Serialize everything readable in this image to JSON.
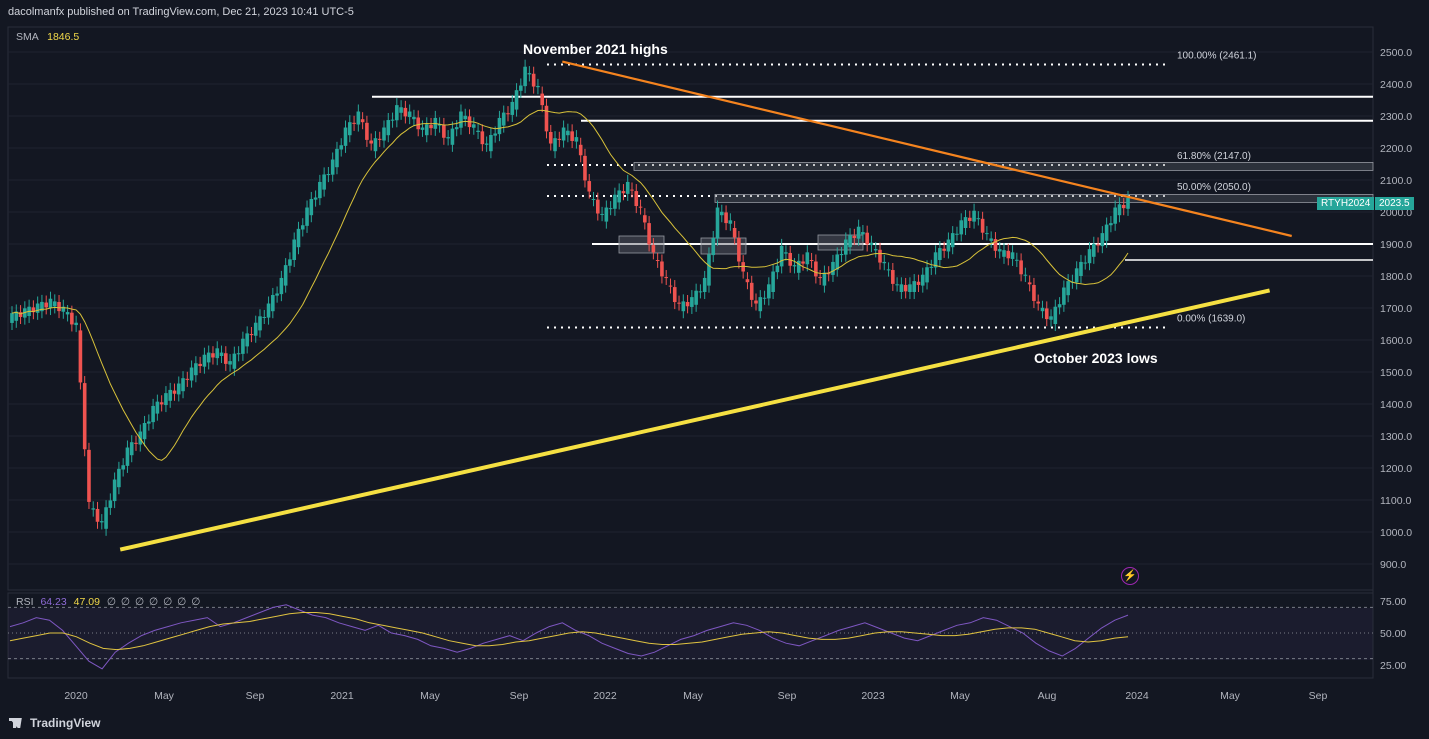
{
  "header": {
    "publisher_line": "dacolmanfx published on TradingView.com, Dec 21, 2023 10:41 UTC-5"
  },
  "legend": {
    "sma_label": "SMA",
    "sma_value": "1846.5",
    "rsi_label": "RSI",
    "rsi_value": "64.23",
    "rsi_ma_value": "47.09",
    "rsi_placeholders": "∅ ∅ ∅ ∅ ∅ ∅ ∅"
  },
  "annotations": {
    "top": "November 2021 highs",
    "bottom": "October 2023 lows"
  },
  "symbol_tag": {
    "symbol": "RTYH2024",
    "price": "2023.5"
  },
  "footer": {
    "brand": "TradingView"
  },
  "chart_data": [
    {
      "type": "candlestick",
      "title": "",
      "y_axis_ticks": [
        "2500.0",
        "2400.0",
        "2300.0",
        "2200.0",
        "2100.0",
        "2000.0",
        "1900.0",
        "1800.0",
        "1700.0",
        "1600.0",
        "1500.0",
        "1400.0",
        "1300.0",
        "1200.0",
        "1100.0",
        "1000.0",
        "900.0"
      ],
      "ylim": [
        880,
        2530
      ],
      "x_axis_ticks": [
        "2020",
        "May",
        "Sep",
        "2021",
        "May",
        "Sep",
        "2022",
        "May",
        "Sep",
        "2023",
        "May",
        "Aug",
        "2024",
        "May",
        "Sep"
      ],
      "fib_levels": [
        {
          "label": "100.00% (2461.1)",
          "value": 2461.1
        },
        {
          "label": "61.80% (2147.0)",
          "value": 2147.0
        },
        {
          "label": "50.00% (2050.0)",
          "value": 2050.0
        },
        {
          "label": "0.00% (1639.0)",
          "value": 1639.0
        }
      ],
      "horizontal_levels": [
        2360,
        2285,
        1900,
        1850
      ],
      "zones": [
        {
          "from": 2130,
          "to": 2155
        },
        {
          "from": 2030,
          "to": 2055
        }
      ],
      "trendlines": [
        {
          "name": "descending",
          "color": "#f5841f",
          "from": [
            "Nov 2021",
            2470
          ],
          "to": [
            "Aug 2024",
            1925
          ]
        },
        {
          "name": "ascending",
          "color": "#f5e042",
          "from": [
            "Mar 2020",
            945
          ],
          "to": [
            "Jul 2024",
            1755
          ]
        }
      ],
      "sma_period_value": 1846.5,
      "series": [
        {
          "name": "RTYH2024",
          "values": [
            1670,
            1685,
            1700,
            1715,
            1690,
            1640,
            1080,
            1020,
            1150,
            1250,
            1300,
            1380,
            1420,
            1450,
            1500,
            1540,
            1560,
            1520,
            1590,
            1640,
            1700,
            1780,
            1900,
            2000,
            2080,
            2150,
            2250,
            2300,
            2200,
            2250,
            2320,
            2300,
            2250,
            2280,
            2220,
            2300,
            2260,
            2200,
            2280,
            2330,
            2440,
            2380,
            2200,
            2250,
            2220,
            2050,
            1980,
            2040,
            2080,
            2000,
            1860,
            1780,
            1700,
            1720,
            1780,
            2000,
            1960,
            1800,
            1700,
            1760,
            1880,
            1820,
            1860,
            1780,
            1830,
            1900,
            1940,
            1890,
            1830,
            1760,
            1760,
            1790,
            1860,
            1900,
            1960,
            1990,
            1920,
            1870,
            1860,
            1790,
            1700,
            1660,
            1750,
            1810,
            1870,
            1920,
            2000,
            2030
          ]
        }
      ]
    },
    {
      "type": "line",
      "title": "",
      "y_axis_ticks": [
        "75.00",
        "50.00",
        "25.00"
      ],
      "ylim": [
        15,
        85
      ],
      "guide_lines": [
        70,
        50,
        30
      ],
      "series": [
        {
          "name": "RSI",
          "color": "#7e57c2",
          "values": [
            55,
            58,
            62,
            60,
            52,
            40,
            28,
            22,
            35,
            42,
            48,
            52,
            55,
            58,
            60,
            62,
            55,
            58,
            62,
            66,
            70,
            72,
            68,
            64,
            62,
            58,
            55,
            52,
            56,
            50,
            48,
            45,
            40,
            38,
            35,
            38,
            42,
            45,
            48,
            44,
            50,
            55,
            58,
            52,
            48,
            42,
            38,
            34,
            32,
            35,
            40,
            45,
            48,
            52,
            55,
            58,
            56,
            52,
            46,
            42,
            40,
            44,
            48,
            52,
            55,
            58,
            54,
            50,
            46,
            44,
            48,
            52,
            56,
            58,
            62,
            60,
            55,
            50,
            42,
            36,
            32,
            38,
            46,
            54,
            60,
            64
          ]
        },
        {
          "name": "RSI-MA",
          "color": "#f2d94a",
          "values": [
            44,
            46,
            48,
            50,
            50,
            47,
            42,
            38,
            37,
            38,
            40,
            43,
            46,
            49,
            52,
            55,
            57,
            58,
            59,
            61,
            63,
            65,
            66,
            66,
            65,
            63,
            61,
            58,
            56,
            54,
            52,
            50,
            47,
            44,
            42,
            40,
            40,
            41,
            43,
            44,
            46,
            48,
            50,
            51,
            50,
            48,
            46,
            44,
            42,
            41,
            41,
            42,
            43,
            45,
            47,
            49,
            50,
            51,
            50,
            48,
            46,
            45,
            45,
            46,
            48,
            50,
            51,
            51,
            50,
            49,
            48,
            48,
            49,
            51,
            53,
            54,
            54,
            53,
            50,
            47,
            44,
            43,
            44,
            46,
            47
          ]
        }
      ]
    }
  ]
}
